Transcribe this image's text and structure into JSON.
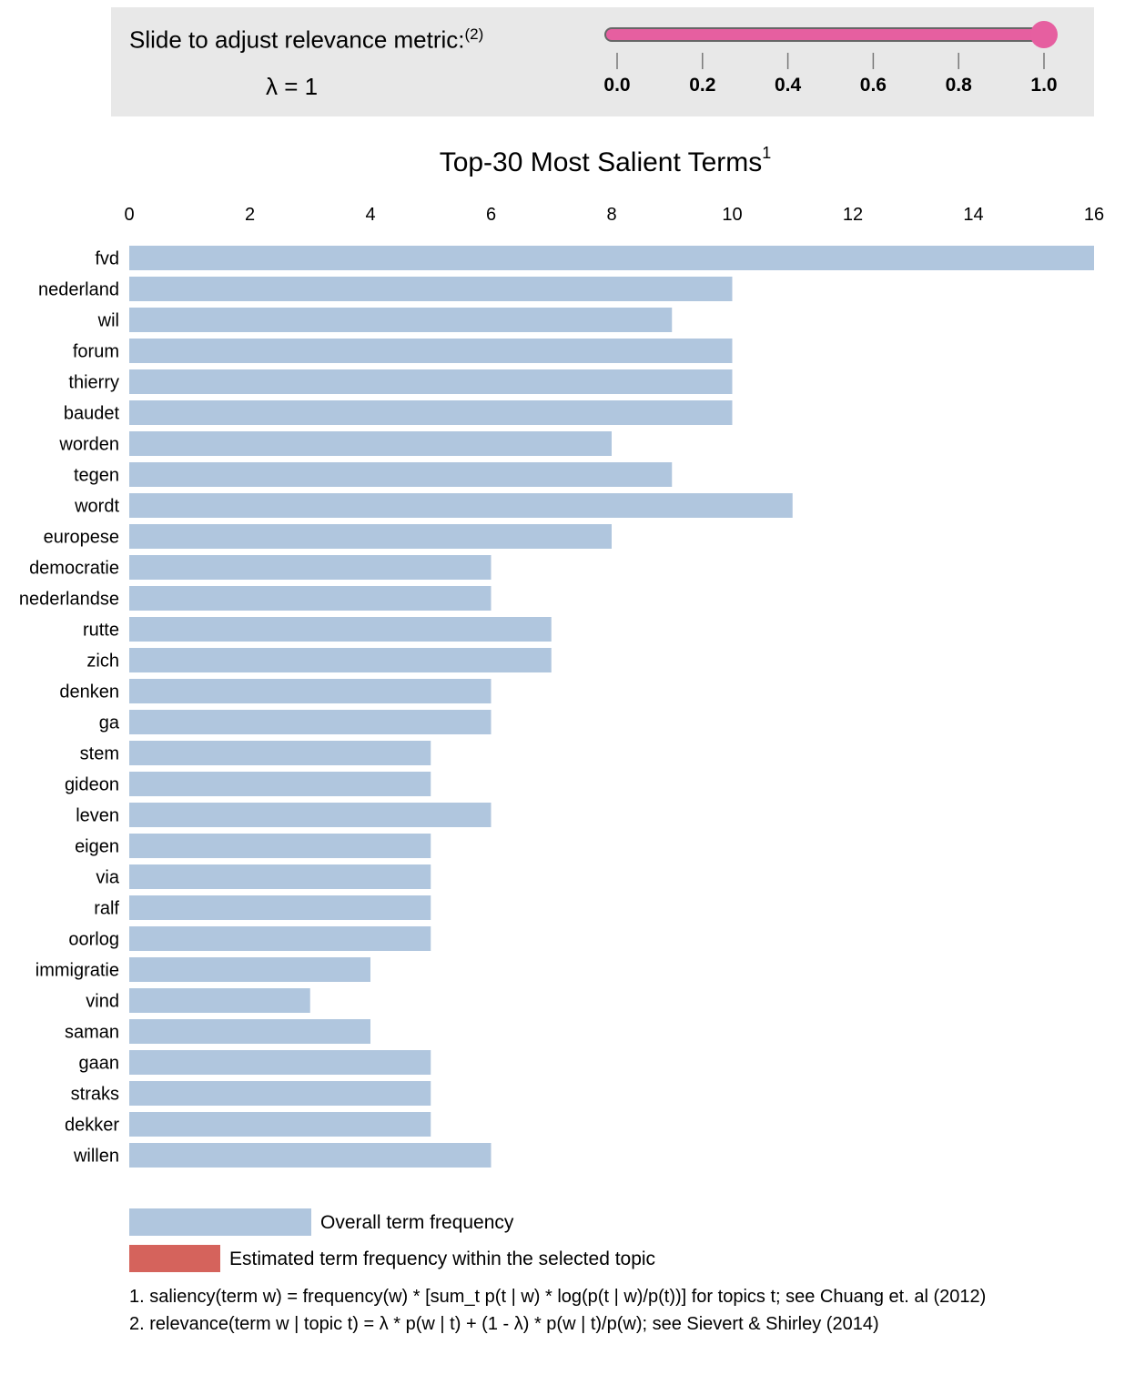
{
  "slider": {
    "label": "Slide to adjust relevance metric:",
    "label_sup": "(2)",
    "lambda_text": "λ = 1",
    "value": 1.0,
    "min": 0.0,
    "max": 1.0,
    "ticks": [
      "0.0",
      "0.2",
      "0.4",
      "0.6",
      "0.8",
      "1.0"
    ],
    "track_color": "#e65fa0",
    "thumb_color": "#e65fa0"
  },
  "chart_data": {
    "type": "bar",
    "orientation": "horizontal",
    "title": "Top-30 Most Salient Terms",
    "title_sup": "1",
    "xlim": [
      0,
      16
    ],
    "xticks": [
      0,
      2,
      4,
      6,
      8,
      10,
      12,
      14,
      16
    ],
    "grid": false,
    "bar_color": "#b0c6de",
    "categories": [
      "fvd",
      "nederland",
      "wil",
      "forum",
      "thierry",
      "baudet",
      "worden",
      "tegen",
      "wordt",
      "europese",
      "democratie",
      "nederlandse",
      "rutte",
      "zich",
      "denken",
      "ga",
      "stem",
      "gideon",
      "leven",
      "eigen",
      "via",
      "ralf",
      "oorlog",
      "immigratie",
      "vind",
      "saman",
      "gaan",
      "straks",
      "dekker",
      "willen"
    ],
    "series": [
      {
        "name": "Overall term frequency",
        "values": [
          16,
          10,
          9,
          10,
          10,
          10,
          8,
          9,
          11,
          8,
          6,
          6,
          7,
          7,
          6,
          6,
          5,
          5,
          6,
          5,
          5,
          5,
          5,
          4,
          3,
          4,
          5,
          5,
          5,
          6
        ]
      }
    ]
  },
  "legend": {
    "items": [
      {
        "label": "Overall term frequency",
        "color": "#b0c6de"
      },
      {
        "label": "Estimated term frequency within the selected topic",
        "color": "#d5635c"
      }
    ]
  },
  "footnotes": [
    "1. saliency(term w) = frequency(w) * [sum_t p(t | w) * log(p(t | w)/p(t))] for topics t; see Chuang et. al (2012)",
    "2. relevance(term w | topic t) = λ * p(w | t) + (1 - λ) * p(w | t)/p(w); see Sievert & Shirley (2014)"
  ]
}
